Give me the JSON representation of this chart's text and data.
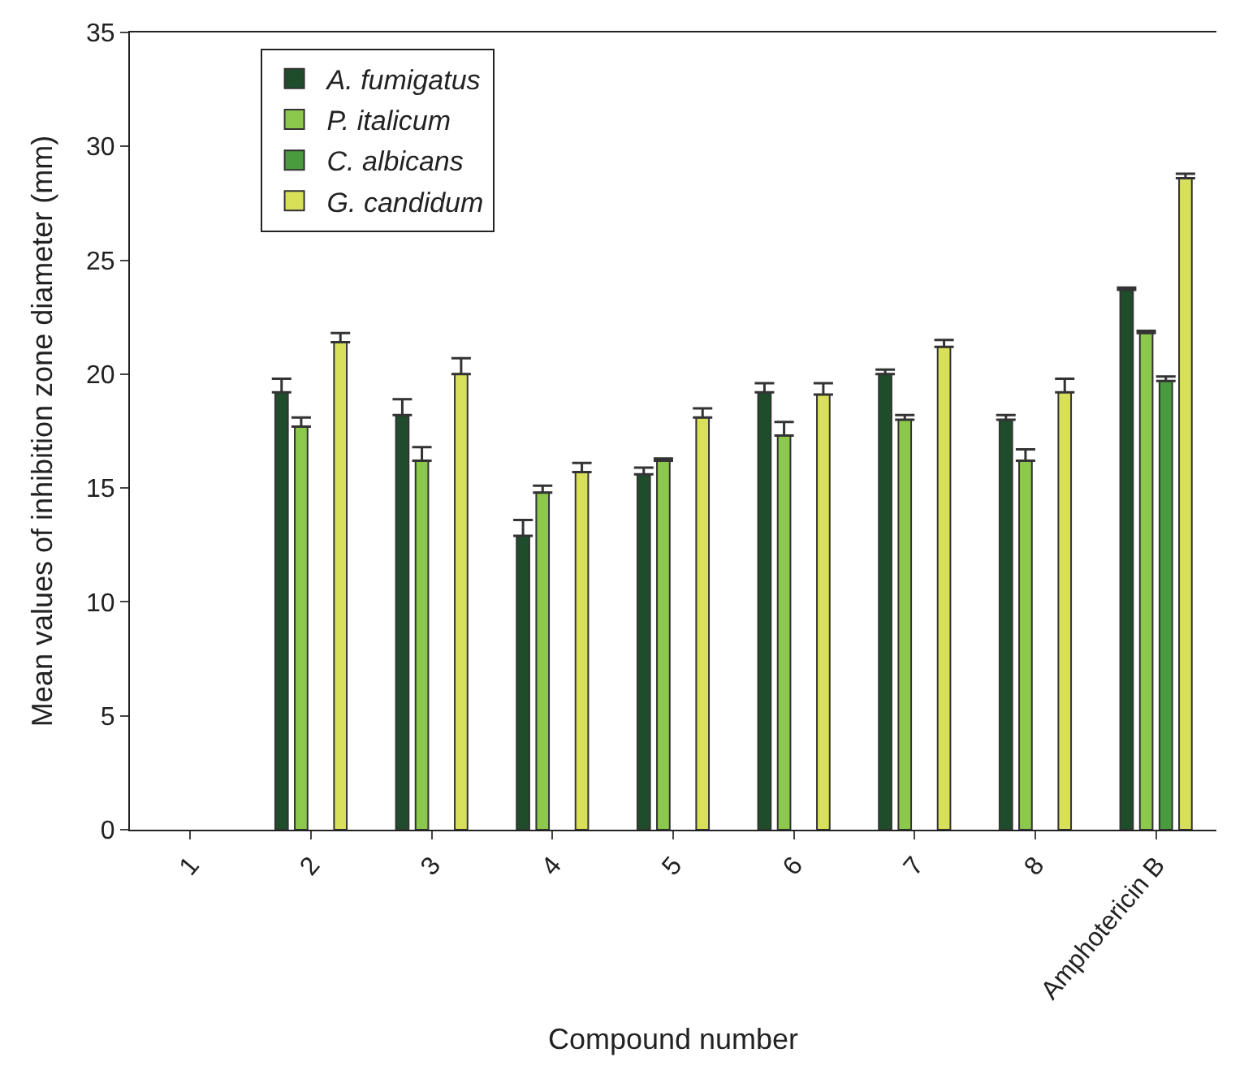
{
  "chart_data": {
    "type": "bar",
    "xlabel": "Compound number",
    "ylabel": "Mean values of inhibition zone diameter (mm)",
    "categories": [
      "1",
      "2",
      "3",
      "4",
      "5",
      "6",
      "7",
      "8",
      "Amphotericin B"
    ],
    "ylim": [
      0,
      35
    ],
    "yticks": [
      0,
      5,
      10,
      15,
      20,
      25,
      30,
      35
    ],
    "legend": "top left",
    "series": [
      {
        "name": "A. fumigatus",
        "color": "#1f4d2b",
        "values": [
          null,
          19.2,
          18.2,
          12.9,
          15.6,
          19.2,
          20.0,
          18.0,
          23.7
        ],
        "errors": [
          null,
          [
            19.2,
            19.8
          ],
          [
            18.2,
            18.9
          ],
          [
            12.9,
            13.6
          ],
          [
            15.6,
            15.9
          ],
          [
            19.2,
            19.6
          ],
          [
            20.0,
            20.2
          ],
          [
            18.0,
            18.2
          ],
          [
            23.7,
            23.8
          ]
        ]
      },
      {
        "name": "P. italicum",
        "color": "#8cc84b",
        "values": [
          null,
          17.7,
          16.2,
          14.8,
          16.2,
          17.3,
          18.0,
          16.2,
          21.8
        ],
        "errors": [
          null,
          [
            17.7,
            18.1
          ],
          [
            16.2,
            16.8
          ],
          [
            14.8,
            15.1
          ],
          [
            16.2,
            16.3
          ],
          [
            17.3,
            17.9
          ],
          [
            18.0,
            18.2
          ],
          [
            16.2,
            16.7
          ],
          [
            21.8,
            21.9
          ]
        ]
      },
      {
        "name": "C. albicans",
        "color": "#4a9a3e",
        "values": [
          null,
          null,
          null,
          null,
          null,
          null,
          null,
          null,
          19.7
        ],
        "errors": [
          null,
          null,
          null,
          null,
          null,
          null,
          null,
          null,
          [
            19.7,
            19.9
          ]
        ]
      },
      {
        "name": "G. candidum",
        "color": "#d8e05a",
        "values": [
          null,
          21.4,
          20.0,
          15.7,
          18.1,
          19.1,
          21.2,
          19.2,
          28.6
        ],
        "errors": [
          null,
          [
            21.4,
            21.8
          ],
          [
            20.0,
            20.7
          ],
          [
            15.7,
            16.1
          ],
          [
            18.1,
            18.5
          ],
          [
            19.1,
            19.6
          ],
          [
            21.2,
            21.5
          ],
          [
            19.2,
            19.8
          ],
          [
            28.6,
            28.8
          ]
        ]
      }
    ]
  }
}
